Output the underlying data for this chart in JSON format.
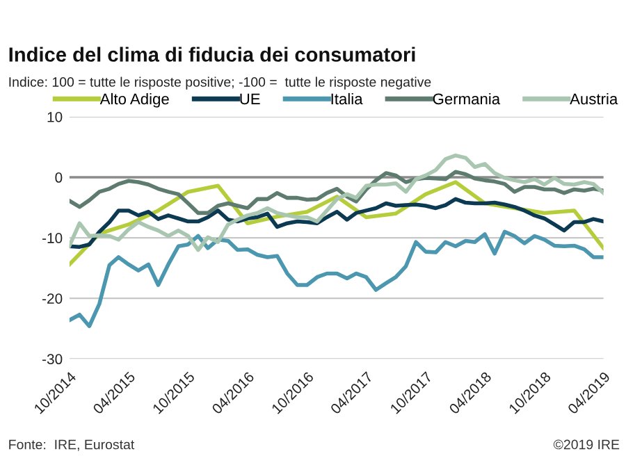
{
  "chart_data": {
    "type": "line",
    "title": "Indice del clima di fiducia dei consumatori",
    "subtitle": "Indice: 100 = tutte le risposte positive; -100 =  tutte le risposte negative",
    "x": [
      "2014-10",
      "2014-11",
      "2014-12",
      "2015-01",
      "2015-02",
      "2015-03",
      "2015-04",
      "2015-05",
      "2015-06",
      "2015-07",
      "2015-08",
      "2015-09",
      "2015-10",
      "2015-11",
      "2015-12",
      "2016-01",
      "2016-02",
      "2016-03",
      "2016-04",
      "2016-05",
      "2016-06",
      "2016-07",
      "2016-08",
      "2016-09",
      "2016-10",
      "2016-11",
      "2016-12",
      "2017-01",
      "2017-02",
      "2017-03",
      "2017-04",
      "2017-05",
      "2017-06",
      "2017-07",
      "2017-08",
      "2017-09",
      "2017-10",
      "2017-11",
      "2017-12",
      "2018-01",
      "2018-02",
      "2018-03",
      "2018-04",
      "2018-05",
      "2018-06",
      "2018-07",
      "2018-08",
      "2018-09",
      "2018-10",
      "2018-11",
      "2018-12",
      "2019-01",
      "2019-02",
      "2019-03",
      "2019-04"
    ],
    "series": [
      {
        "name": "Alto Adige",
        "color": "#b5cd3a",
        "x": [
          "2014-10",
          "2015-01",
          "2015-04",
          "2015-07",
          "2015-10",
          "2016-01",
          "2016-04",
          "2016-07",
          "2016-10",
          "2017-01",
          "2017-04",
          "2017-07",
          "2017-10",
          "2018-01",
          "2018-04",
          "2018-07",
          "2018-10",
          "2019-01",
          "2019-04"
        ],
        "values": [
          -14.4,
          -9.3,
          -7.8,
          -5.5,
          -2.4,
          -1.4,
          -7.6,
          -6.5,
          -5.7,
          -3.2,
          -6.6,
          -6.0,
          -2.8,
          -0.8,
          -4.3,
          -5.1,
          -5.9,
          -5.5,
          -11.7
        ]
      },
      {
        "name": "UE",
        "color": "#0b3a52",
        "values": [
          -11.4,
          -11.5,
          -11.1,
          -9.0,
          -7.4,
          -5.5,
          -5.5,
          -6.3,
          -5.7,
          -6.9,
          -6.3,
          -6.8,
          -7.3,
          -7.3,
          -6.6,
          -5.5,
          -7.0,
          -7.3,
          -6.8,
          -6.6,
          -6.0,
          -8.2,
          -7.6,
          -7.3,
          -7.4,
          -7.6,
          -6.6,
          -5.7,
          -7.0,
          -5.9,
          -5.5,
          -5.1,
          -4.3,
          -4.7,
          -4.6,
          -4.5,
          -4.7,
          -5.1,
          -4.6,
          -3.6,
          -4.2,
          -4.3,
          -4.3,
          -4.2,
          -4.5,
          -4.9,
          -5.5,
          -6.3,
          -6.8,
          -7.8,
          -8.8,
          -7.4,
          -7.4,
          -6.9,
          -7.3
        ]
      },
      {
        "name": "Italia",
        "color": "#4c97b0",
        "values": [
          -23.6,
          -22.7,
          -24.6,
          -20.9,
          -14.5,
          -13.2,
          -14.4,
          -15.4,
          -14.4,
          -17.8,
          -14.4,
          -11.4,
          -11.1,
          -9.7,
          -11.7,
          -10.3,
          -10.5,
          -12.0,
          -11.9,
          -12.8,
          -13.2,
          -13.0,
          -15.9,
          -17.8,
          -17.8,
          -16.5,
          -15.9,
          -15.9,
          -16.7,
          -15.9,
          -16.5,
          -18.6,
          -17.5,
          -16.5,
          -14.7,
          -10.7,
          -12.3,
          -12.4,
          -10.7,
          -11.4,
          -10.5,
          -10.7,
          -9.4,
          -12.6,
          -9.0,
          -9.7,
          -10.9,
          -9.7,
          -10.3,
          -11.3,
          -11.4,
          -11.3,
          -11.9,
          -13.2,
          -13.2
        ]
      },
      {
        "name": "Germania",
        "color": "#5e7b6f",
        "values": [
          -3.9,
          -4.9,
          -3.8,
          -2.4,
          -1.9,
          -1.1,
          -0.6,
          -0.8,
          -1.2,
          -1.9,
          -2.4,
          -2.8,
          -4.3,
          -5.9,
          -5.9,
          -4.7,
          -4.3,
          -4.7,
          -5.1,
          -3.6,
          -3.6,
          -2.6,
          -3.4,
          -3.4,
          -3.7,
          -3.6,
          -2.6,
          -1.9,
          -3.2,
          -4.0,
          -2.0,
          -0.5,
          0.7,
          0.3,
          -0.8,
          -0.3,
          -0.1,
          -0.2,
          -0.3,
          0.9,
          0.5,
          -0.2,
          -0.5,
          -0.7,
          -1.1,
          -2.4,
          -1.6,
          -1.6,
          -2.0,
          -2.0,
          -2.6,
          -2.0,
          -2.2,
          -1.9,
          -2.2
        ]
      },
      {
        "name": "Austria",
        "color": "#a9c6b0",
        "values": [
          -11.3,
          -7.6,
          -9.7,
          -9.6,
          -9.7,
          -10.3,
          -8.6,
          -7.4,
          -8.2,
          -8.8,
          -9.7,
          -8.8,
          -9.7,
          -12.0,
          -9.9,
          -10.7,
          -7.8,
          -7.0,
          -6.3,
          -5.9,
          -5.1,
          -5.9,
          -6.3,
          -6.6,
          -6.6,
          -7.3,
          -5.5,
          -3.6,
          -2.8,
          -3.4,
          -1.4,
          -1.2,
          -1.2,
          -1.0,
          -2.4,
          -0.3,
          0.3,
          1.2,
          3.0,
          3.6,
          3.2,
          1.7,
          2.2,
          0.7,
          -0.1,
          -0.5,
          -0.8,
          -0.3,
          -1.2,
          -0.1,
          -1.1,
          -1.2,
          -0.8,
          -1.1,
          -2.6
        ]
      }
    ],
    "xlim": [
      "2014-10",
      "2019-04"
    ],
    "xticks": [
      {
        "value": "2014-10",
        "label": "10/2014"
      },
      {
        "value": "2015-04",
        "label": "04/2015"
      },
      {
        "value": "2015-10",
        "label": "10/2015"
      },
      {
        "value": "2016-04",
        "label": "04/2016"
      },
      {
        "value": "2016-10",
        "label": "10/2016"
      },
      {
        "value": "2017-04",
        "label": "04/2017"
      },
      {
        "value": "2017-10",
        "label": "10/2017"
      },
      {
        "value": "2018-04",
        "label": "04/2018"
      },
      {
        "value": "2018-10",
        "label": "10/2018"
      },
      {
        "value": "2019-04",
        "label": "04/2019"
      }
    ],
    "ylim": [
      -30,
      10
    ],
    "yticks": [
      -30,
      -20,
      -10,
      0,
      10
    ],
    "grid": "y",
    "legend": "top",
    "ref_lines": [
      {
        "axis": "y",
        "value": 0,
        "color": "#8c8c8c"
      }
    ],
    "annotations": [
      "Fonte:  IRE, Eurostat",
      "©2019 IRE"
    ]
  }
}
